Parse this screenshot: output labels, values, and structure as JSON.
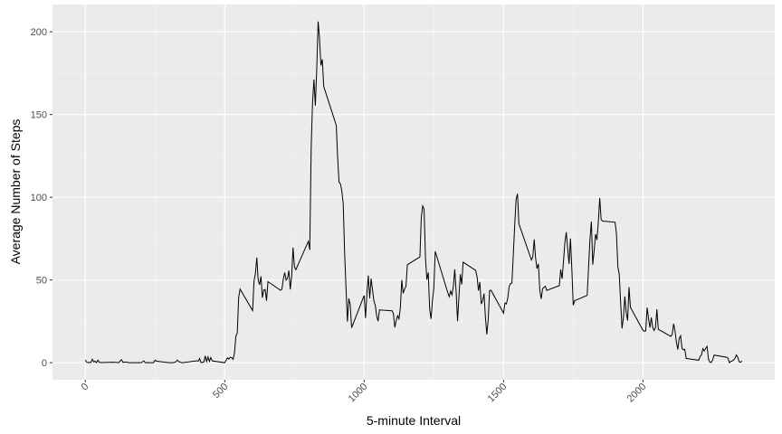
{
  "chart_data": {
    "type": "line",
    "xlabel": "5-minute Interval",
    "ylabel": "Average Number of Steps",
    "color": "#000000",
    "grid": true,
    "xlim": [
      -117.75,
      2472.75
    ],
    "ylim": [
      -10.3,
      216.5
    ],
    "xticks": [
      0,
      500,
      1000,
      1500,
      2000
    ],
    "yticks": [
      0,
      50,
      100,
      150,
      200
    ],
    "x": [
      0,
      5,
      10,
      15,
      20,
      25,
      30,
      35,
      40,
      45,
      50,
      55,
      100,
      110,
      120,
      125,
      130,
      135,
      145,
      150,
      155,
      200,
      210,
      215,
      220,
      225,
      230,
      245,
      250,
      255,
      300,
      315,
      320,
      325,
      330,
      335,
      340,
      345,
      350,
      400,
      405,
      410,
      415,
      420,
      425,
      430,
      435,
      440,
      445,
      450,
      455,
      500,
      505,
      510,
      515,
      520,
      525,
      530,
      535,
      540,
      545,
      550,
      555,
      600,
      605,
      610,
      615,
      620,
      625,
      630,
      635,
      640,
      645,
      650,
      655,
      700,
      705,
      710,
      715,
      720,
      725,
      730,
      735,
      740,
      745,
      750,
      755,
      800,
      805,
      810,
      815,
      820,
      825,
      830,
      835,
      840,
      845,
      850,
      855,
      900,
      905,
      910,
      915,
      920,
      925,
      930,
      935,
      940,
      945,
      950,
      955,
      1000,
      1005,
      1010,
      1015,
      1020,
      1025,
      1030,
      1035,
      1040,
      1045,
      1050,
      1055,
      1100,
      1105,
      1110,
      1115,
      1120,
      1125,
      1130,
      1135,
      1140,
      1145,
      1150,
      1155,
      1200,
      1205,
      1210,
      1215,
      1220,
      1225,
      1230,
      1235,
      1240,
      1245,
      1250,
      1255,
      1300,
      1305,
      1310,
      1315,
      1320,
      1325,
      1330,
      1335,
      1340,
      1345,
      1350,
      1355,
      1400,
      1405,
      1410,
      1415,
      1420,
      1425,
      1430,
      1435,
      1440,
      1445,
      1450,
      1455,
      1500,
      1505,
      1510,
      1515,
      1520,
      1525,
      1530,
      1535,
      1540,
      1545,
      1550,
      1555,
      1600,
      1605,
      1610,
      1615,
      1620,
      1625,
      1630,
      1635,
      1640,
      1645,
      1650,
      1655,
      1700,
      1705,
      1710,
      1715,
      1720,
      1725,
      1730,
      1735,
      1740,
      1745,
      1750,
      1755,
      1800,
      1805,
      1810,
      1815,
      1820,
      1825,
      1830,
      1835,
      1840,
      1845,
      1850,
      1855,
      1900,
      1905,
      1910,
      1915,
      1920,
      1925,
      1930,
      1935,
      1940,
      1945,
      1950,
      1955,
      2000,
      2005,
      2010,
      2015,
      2020,
      2025,
      2030,
      2035,
      2040,
      2045,
      2050,
      2055,
      2100,
      2105,
      2110,
      2115,
      2120,
      2125,
      2130,
      2135,
      2140,
      2145,
      2150,
      2155,
      2200,
      2205,
      2210,
      2215,
      2220,
      2225,
      2230,
      2235,
      2240,
      2245,
      2250,
      2255,
      2300,
      2305,
      2310,
      2315,
      2320,
      2325,
      2330,
      2335,
      2340,
      2345,
      2350,
      2355
    ],
    "values": [
      1.7,
      0.3,
      0.1,
      0.2,
      0.1,
      2.1,
      0.5,
      0.9,
      0,
      1.5,
      0.3,
      0.1,
      0.3,
      0.2,
      0,
      1.1,
      1.8,
      0.2,
      0.4,
      0.3,
      0,
      0,
      1.1,
      0,
      0,
      0.1,
      0,
      0,
      1.5,
      0.9,
      0,
      0,
      0.2,
      0.6,
      1.6,
      0.6,
      0.5,
      0.1,
      0,
      1.2,
      0.9,
      2.6,
      0,
      0.3,
      0.4,
      4.1,
      0.7,
      3.5,
      0.8,
      3.1,
      1.1,
      0,
      1.5,
      3,
      2.2,
      3.3,
      3,
      2.1,
      6,
      16,
      18,
      39.5,
      44.5,
      31.5,
      49.3,
      53.8,
      63.5,
      50,
      47.1,
      52.2,
      39.3,
      44,
      44.2,
      37.4,
      49,
      43.8,
      44.4,
      50.5,
      54.5,
      49.9,
      51,
      55.7,
      44.3,
      52.3,
      69.6,
      57.9,
      56.2,
      73.4,
      68.2,
      129.4,
      157.5,
      171.2,
      155.4,
      177.3,
      206.2,
      195.9,
      179.6,
      183.4,
      167,
      143.5,
      124,
      109.1,
      108.1,
      103.7,
      96,
      66.2,
      45.2,
      24.8,
      38.8,
      35,
      21.1,
      40.6,
      27,
      42.4,
      52.7,
      38.9,
      50.8,
      44.3,
      37.4,
      34.7,
      28.3,
      25.1,
      31.9,
      31.4,
      29.7,
      21.3,
      25.5,
      28.4,
      26.5,
      33.4,
      50,
      42,
      44.6,
      46,
      59.2,
      63.9,
      87.7,
      94.8,
      92.8,
      63.4,
      50.2,
      54.5,
      32.4,
      26.5,
      37.7,
      45.1,
      67.3,
      42.3,
      39.9,
      43.3,
      41,
      46.2,
      56.4,
      42.8,
      25.1,
      39.9,
      53.5,
      47.3,
      60.8,
      55.8,
      52,
      43.6,
      48.7,
      35.5,
      37.5,
      41.8,
      27.5,
      17.1,
      26.1,
      43.6,
      43.8,
      30,
      36.1,
      35.5,
      38.8,
      46,
      47.8,
      48.1,
      65.3,
      82.9,
      98.7,
      102.1,
      84,
      62.1,
      64.1,
      74.5,
      63.2,
      56.9,
      59.8,
      43.9,
      38.6,
      44.7,
      45.5,
      46.2,
      43.7,
      46.6,
      56.3,
      50.7,
      61.2,
      72.7,
      78.9,
      68.9,
      59.7,
      75.1,
      56.5,
      34.8,
      37.5,
      40.7,
      58,
      74.7,
      85.3,
      59.3,
      67.8,
      77.7,
      74.2,
      85.3,
      99.5,
      86.6,
      85.6,
      84.9,
      77.8,
      58,
      53.4,
      36.3,
      20.7,
      27.4,
      40,
      30.2,
      25.5,
      45.7,
      33.5,
      19.6,
      19,
      19.3,
      33.3,
      26.8,
      21.2,
      27.3,
      21.3,
      19.5,
      21.3,
      32.3,
      20.2,
      15.9,
      17.2,
      23.5,
      19.2,
      12.5,
      8,
      14.7,
      16.3,
      8.7,
      7.8,
      8.1,
      2.6,
      1.5,
      3.7,
      4.8,
      8.5,
      7.1,
      8.7,
      9.8,
      2.2,
      0.3,
      0.1,
      1.6,
      4.6,
      3.3,
      2.8,
      0,
      0.8,
      1,
      1.6,
      2.6,
      4.7,
      3.3,
      0.6,
      0.2,
      1.1
    ]
  }
}
